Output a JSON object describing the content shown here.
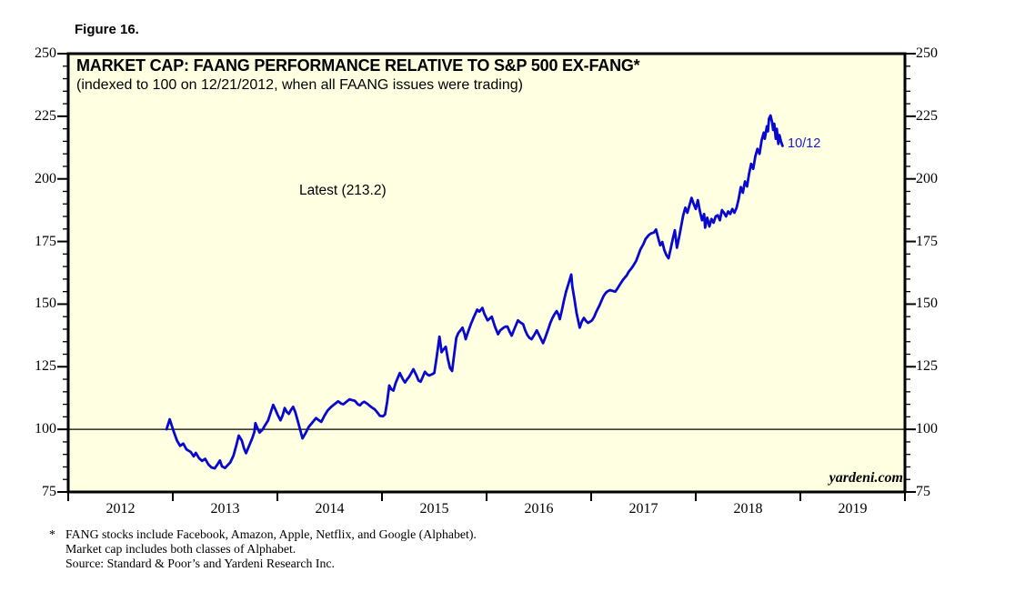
{
  "figure_label": "Figure 16.",
  "chart": {
    "title": "MARKET CAP: FAANG PERFORMANCE RELATIVE TO S&P 500 EX-FANG*",
    "subtitle": "(indexed to 100 on 12/21/2012, when all FAANG issues were trading)",
    "latest_annotation": "Latest (213.2)",
    "end_date_label": "10/12",
    "watermark": "yardeni.com"
  },
  "footnote": {
    "marker": "*",
    "lines": [
      "FANG stocks include Facebook, Amazon, Apple, Netflix, and Google (Alphabet).",
      "Market cap includes both classes of Alphabet.",
      "Source: Standard & Poor’s and Yardeni Research Inc."
    ]
  },
  "chart_data": {
    "type": "line",
    "title": "MARKET CAP: FAANG PERFORMANCE RELATIVE TO S&P 500 EX-FANG*",
    "subtitle": "(indexed to 100 on 12/21/2012, when all FAANG issues were trading)",
    "xlabel": "",
    "ylabel": "",
    "xlim": [
      2012,
      2020
    ],
    "ylim": [
      75,
      250
    ],
    "y_major_ticks": [
      75,
      100,
      125,
      150,
      175,
      200,
      225,
      250
    ],
    "y_minor_step": 5,
    "x_year_ticks": [
      2012,
      2013,
      2014,
      2015,
      2016,
      2017,
      2018,
      2019,
      2020
    ],
    "x_year_labels": [
      "2012",
      "2013",
      "2014",
      "2015",
      "2016",
      "2017",
      "2018",
      "2019"
    ],
    "grid": false,
    "legend_position": "none",
    "reference_line_y": 100,
    "latest_value": 213.2,
    "latest_date_label": "10/12",
    "colors": {
      "line": "#0808CF",
      "annotation_blue": "#1A1ACC",
      "plot_background": "#FFFFE2",
      "axis": "#000000"
    },
    "series": [
      {
        "name": "FAANG market cap index relative to S&P 500 ex-FANG (12/21/2012 = 100)",
        "points": [
          [
            2012.94,
            100.0
          ],
          [
            2012.97,
            104.0
          ],
          [
            2013.01,
            99.0
          ],
          [
            2013.04,
            95.5
          ],
          [
            2013.07,
            93.4
          ],
          [
            2013.1,
            94.3
          ],
          [
            2013.13,
            92.0
          ],
          [
            2013.17,
            91.0
          ],
          [
            2013.2,
            89.2
          ],
          [
            2013.22,
            90.6
          ],
          [
            2013.25,
            88.5
          ],
          [
            2013.28,
            87.4
          ],
          [
            2013.31,
            88.2
          ],
          [
            2013.34,
            86.0
          ],
          [
            2013.37,
            84.8
          ],
          [
            2013.4,
            84.4
          ],
          [
            2013.43,
            86.2
          ],
          [
            2013.45,
            87.6
          ],
          [
            2013.47,
            85.2
          ],
          [
            2013.5,
            84.6
          ],
          [
            2013.52,
            85.5
          ],
          [
            2013.55,
            86.8
          ],
          [
            2013.58,
            89.5
          ],
          [
            2013.61,
            94.0
          ],
          [
            2013.63,
            97.5
          ],
          [
            2013.66,
            95.5
          ],
          [
            2013.68,
            92.5
          ],
          [
            2013.7,
            90.5
          ],
          [
            2013.73,
            93.5
          ],
          [
            2013.76,
            96.5
          ],
          [
            2013.78,
            99.0
          ],
          [
            2013.79,
            102.5
          ],
          [
            2013.81,
            100.5
          ],
          [
            2013.83,
            98.7
          ],
          [
            2013.86,
            100.0
          ],
          [
            2013.88,
            101.5
          ],
          [
            2013.91,
            103.5
          ],
          [
            2013.93,
            106.0
          ],
          [
            2013.96,
            109.8
          ],
          [
            2013.98,
            108.0
          ],
          [
            2014.0,
            106.0
          ],
          [
            2014.03,
            103.6
          ],
          [
            2014.05,
            105.5
          ],
          [
            2014.07,
            108.5
          ],
          [
            2014.09,
            107.0
          ],
          [
            2014.11,
            106.2
          ],
          [
            2014.13,
            107.8
          ],
          [
            2014.15,
            109.0
          ],
          [
            2014.17,
            107.0
          ],
          [
            2014.19,
            104.0
          ],
          [
            2014.22,
            99.5
          ],
          [
            2014.24,
            96.4
          ],
          [
            2014.27,
            98.5
          ],
          [
            2014.3,
            101.0
          ],
          [
            2014.33,
            102.5
          ],
          [
            2014.37,
            104.5
          ],
          [
            2014.39,
            103.8
          ],
          [
            2014.42,
            103.0
          ],
          [
            2014.45,
            105.5
          ],
          [
            2014.48,
            107.5
          ],
          [
            2014.51,
            108.8
          ],
          [
            2014.53,
            109.5
          ],
          [
            2014.56,
            110.5
          ],
          [
            2014.58,
            111.2
          ],
          [
            2014.61,
            110.3
          ],
          [
            2014.63,
            110.0
          ],
          [
            2014.66,
            111.0
          ],
          [
            2014.69,
            112.0
          ],
          [
            2014.71,
            111.7
          ],
          [
            2014.74,
            111.4
          ],
          [
            2014.77,
            110.0
          ],
          [
            2014.79,
            109.6
          ],
          [
            2014.81,
            110.5
          ],
          [
            2014.83,
            111.0
          ],
          [
            2014.86,
            110.2
          ],
          [
            2014.88,
            109.5
          ],
          [
            2014.91,
            108.5
          ],
          [
            2014.93,
            108.0
          ],
          [
            2014.96,
            106.5
          ],
          [
            2014.98,
            105.4
          ],
          [
            2015.01,
            105.2
          ],
          [
            2015.03,
            106.0
          ],
          [
            2015.05,
            111.0
          ],
          [
            2015.07,
            117.5
          ],
          [
            2015.09,
            116.0
          ],
          [
            2015.11,
            115.5
          ],
          [
            2015.13,
            118.5
          ],
          [
            2015.15,
            120.5
          ],
          [
            2015.17,
            122.5
          ],
          [
            2015.2,
            120.0
          ],
          [
            2015.22,
            118.7
          ],
          [
            2015.24,
            120.0
          ],
          [
            2015.26,
            121.0
          ],
          [
            2015.28,
            122.5
          ],
          [
            2015.3,
            124.0
          ],
          [
            2015.33,
            121.5
          ],
          [
            2015.35,
            119.5
          ],
          [
            2015.37,
            119.0
          ],
          [
            2015.39,
            121.0
          ],
          [
            2015.41,
            123.0
          ],
          [
            2015.43,
            122.0
          ],
          [
            2015.45,
            121.5
          ],
          [
            2015.48,
            122.0
          ],
          [
            2015.5,
            122.5
          ],
          [
            2015.52,
            128.0
          ],
          [
            2015.55,
            137.0
          ],
          [
            2015.56,
            134.0
          ],
          [
            2015.57,
            130.8
          ],
          [
            2015.59,
            132.0
          ],
          [
            2015.61,
            133.0
          ],
          [
            2015.63,
            128.0
          ],
          [
            2015.65,
            124.5
          ],
          [
            2015.67,
            123.3
          ],
          [
            2015.69,
            130.0
          ],
          [
            2015.71,
            136.5
          ],
          [
            2015.73,
            138.5
          ],
          [
            2015.75,
            139.5
          ],
          [
            2015.77,
            140.6
          ],
          [
            2015.79,
            138.0
          ],
          [
            2015.8,
            136.0
          ],
          [
            2015.82,
            138.5
          ],
          [
            2015.85,
            142.0
          ],
          [
            2015.88,
            145.0
          ],
          [
            2015.91,
            147.8
          ],
          [
            2015.93,
            147.0
          ],
          [
            2015.96,
            148.5
          ],
          [
            2015.98,
            146.0
          ],
          [
            2016.01,
            143.5
          ],
          [
            2016.03,
            144.2
          ],
          [
            2016.05,
            145.0
          ],
          [
            2016.08,
            141.0
          ],
          [
            2016.11,
            138.0
          ],
          [
            2016.13,
            139.5
          ],
          [
            2016.16,
            140.5
          ],
          [
            2016.18,
            141.0
          ],
          [
            2016.2,
            141.0
          ],
          [
            2016.22,
            139.0
          ],
          [
            2016.24,
            137.4
          ],
          [
            2016.27,
            140.5
          ],
          [
            2016.3,
            143.5
          ],
          [
            2016.32,
            142.8
          ],
          [
            2016.35,
            142.0
          ],
          [
            2016.37,
            139.5
          ],
          [
            2016.39,
            137.6
          ],
          [
            2016.41,
            136.5
          ],
          [
            2016.43,
            136.0
          ],
          [
            2016.46,
            138.0
          ],
          [
            2016.48,
            139.5
          ],
          [
            2016.51,
            137.0
          ],
          [
            2016.54,
            134.4
          ],
          [
            2016.56,
            136.5
          ],
          [
            2016.59,
            140.0
          ],
          [
            2016.61,
            142.5
          ],
          [
            2016.63,
            144.5
          ],
          [
            2016.65,
            146.0
          ],
          [
            2016.67,
            147.2
          ],
          [
            2016.69,
            145.5
          ],
          [
            2016.7,
            144.0
          ],
          [
            2016.72,
            147.5
          ],
          [
            2016.74,
            151.5
          ],
          [
            2016.76,
            155.0
          ],
          [
            2016.79,
            159.0
          ],
          [
            2016.81,
            161.8
          ],
          [
            2016.82,
            157.0
          ],
          [
            2016.84,
            152.0
          ],
          [
            2016.86,
            146.5
          ],
          [
            2016.89,
            140.6
          ],
          [
            2016.91,
            143.0
          ],
          [
            2016.93,
            144.5
          ],
          [
            2016.95,
            143.3
          ],
          [
            2016.97,
            142.5
          ],
          [
            2016.99,
            143.0
          ],
          [
            2017.01,
            143.6
          ],
          [
            2017.03,
            145.0
          ],
          [
            2017.05,
            147.0
          ],
          [
            2017.08,
            149.5
          ],
          [
            2017.1,
            151.5
          ],
          [
            2017.12,
            153.3
          ],
          [
            2017.14,
            154.5
          ],
          [
            2017.16,
            155.2
          ],
          [
            2017.18,
            155.6
          ],
          [
            2017.21,
            155.2
          ],
          [
            2017.23,
            155.0
          ],
          [
            2017.25,
            156.2
          ],
          [
            2017.27,
            157.5
          ],
          [
            2017.29,
            158.8
          ],
          [
            2017.31,
            160.0
          ],
          [
            2017.34,
            161.5
          ],
          [
            2017.36,
            163.0
          ],
          [
            2017.38,
            164.0
          ],
          [
            2017.4,
            165.2
          ],
          [
            2017.43,
            167.3
          ],
          [
            2017.45,
            169.5
          ],
          [
            2017.47,
            171.8
          ],
          [
            2017.5,
            174.0
          ],
          [
            2017.52,
            176.0
          ],
          [
            2017.55,
            177.5
          ],
          [
            2017.57,
            178.2
          ],
          [
            2017.6,
            178.6
          ],
          [
            2017.62,
            179.8
          ],
          [
            2017.64,
            176.5
          ],
          [
            2017.66,
            173.5
          ],
          [
            2017.68,
            174.8
          ],
          [
            2017.7,
            171.5
          ],
          [
            2017.72,
            169.5
          ],
          [
            2017.74,
            168.3
          ],
          [
            2017.76,
            172.0
          ],
          [
            2017.78,
            176.0
          ],
          [
            2017.8,
            179.5
          ],
          [
            2017.82,
            172.5
          ],
          [
            2017.84,
            176.5
          ],
          [
            2017.86,
            181.0
          ],
          [
            2017.88,
            185.5
          ],
          [
            2017.9,
            188.5
          ],
          [
            2017.92,
            186.5
          ],
          [
            2017.94,
            189.5
          ],
          [
            2017.96,
            192.4
          ],
          [
            2017.98,
            190.0
          ],
          [
            2018.0,
            188.0
          ],
          [
            2018.02,
            191.5
          ],
          [
            2018.04,
            187.0
          ],
          [
            2018.06,
            183.5
          ],
          [
            2018.08,
            186.0
          ],
          [
            2018.09,
            180.5
          ],
          [
            2018.11,
            184.5
          ],
          [
            2018.13,
            181.0
          ],
          [
            2018.15,
            184.0
          ],
          [
            2018.17,
            182.5
          ],
          [
            2018.19,
            185.0
          ],
          [
            2018.21,
            185.5
          ],
          [
            2018.23,
            183.5
          ],
          [
            2018.25,
            187.5
          ],
          [
            2018.27,
            186.5
          ],
          [
            2018.29,
            185.0
          ],
          [
            2018.31,
            187.0
          ],
          [
            2018.33,
            186.0
          ],
          [
            2018.35,
            188.0
          ],
          [
            2018.37,
            186.5
          ],
          [
            2018.39,
            188.5
          ],
          [
            2018.41,
            192.0
          ],
          [
            2018.43,
            196.7
          ],
          [
            2018.45,
            194.5
          ],
          [
            2018.47,
            199.0
          ],
          [
            2018.49,
            197.0
          ],
          [
            2018.51,
            202.0
          ],
          [
            2018.53,
            206.0
          ],
          [
            2018.55,
            204.0
          ],
          [
            2018.57,
            209.0
          ],
          [
            2018.59,
            212.0
          ],
          [
            2018.61,
            210.0
          ],
          [
            2018.63,
            215.5
          ],
          [
            2018.65,
            218.5
          ],
          [
            2018.66,
            216.0
          ],
          [
            2018.68,
            221.0
          ],
          [
            2018.69,
            219.0
          ],
          [
            2018.7,
            224.0
          ],
          [
            2018.715,
            225.3
          ],
          [
            2018.73,
            222.5
          ],
          [
            2018.74,
            219.5
          ],
          [
            2018.75,
            222.0
          ],
          [
            2018.765,
            216.0
          ],
          [
            2018.775,
            220.0
          ],
          [
            2018.79,
            214.0
          ],
          [
            2018.8,
            217.5
          ],
          [
            2018.815,
            215.0
          ],
          [
            2018.83,
            213.2
          ]
        ]
      }
    ]
  }
}
